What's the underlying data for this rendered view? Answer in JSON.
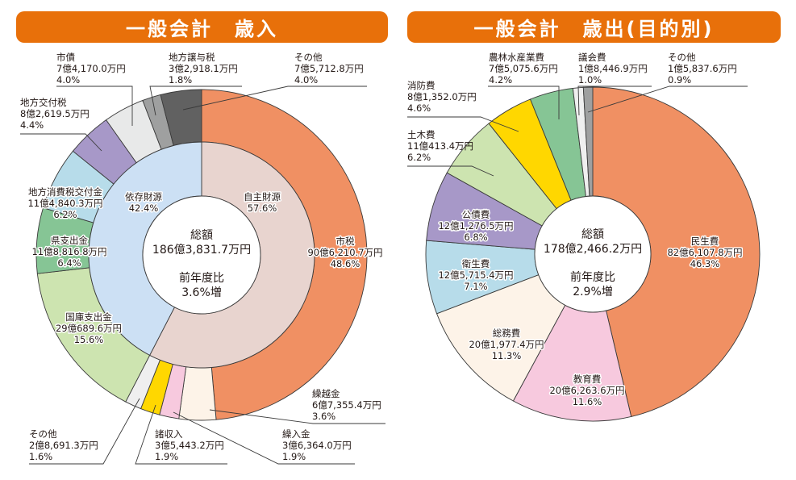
{
  "charts_page": {
    "left_title": "一般会計　歳入",
    "right_title": "一般会計　歳出(目的別)"
  },
  "chart_data": [
    {
      "type": "pie",
      "subtype": "donut-two-level",
      "title": "一般会計　歳入",
      "center": {
        "total_label": "総額",
        "total_value": "186億3,831.7万円",
        "yoy_label": "前年度比",
        "yoy_value": "3.6%増"
      },
      "inner_ring": [
        {
          "name": "自主財源",
          "percent": 57.6,
          "color": "#e8d4cf"
        },
        {
          "name": "依存財源",
          "percent": 42.4,
          "color": "#cce0f4"
        }
      ],
      "slices": [
        {
          "name": "市税",
          "amount": "90億6,210.7万円",
          "percent": 48.6,
          "color": "#f09063",
          "group": "自主財源"
        },
        {
          "name": "繰越金",
          "amount": "6億7,355.4万円",
          "percent": 3.6,
          "color": "#fdf3e8",
          "group": "自主財源"
        },
        {
          "name": "繰入金",
          "amount": "3億6,364.0万円",
          "percent": 1.9,
          "color": "#f7c9de",
          "group": "自主財源"
        },
        {
          "name": "諸収入",
          "amount": "3億5,443.2万円",
          "percent": 1.9,
          "color": "#ffd700",
          "group": "自主財源"
        },
        {
          "name": "その他",
          "amount": "2億8,691.3万円",
          "percent": 1.6,
          "color": "#efefef",
          "group": "自主財源"
        },
        {
          "name": "国庫支出金",
          "amount": "29億689.6万円",
          "percent": 15.6,
          "color": "#cde4b0",
          "group": "依存財源"
        },
        {
          "name": "県支出金",
          "amount": "11億8,816.8万円",
          "percent": 6.4,
          "color": "#86c595",
          "group": "依存財源"
        },
        {
          "name": "地方消費税交付金",
          "amount": "11億4,840.3万円",
          "percent": 6.2,
          "color": "#b7dcea",
          "group": "依存財源"
        },
        {
          "name": "地方交付税",
          "amount": "8億2,619.5万円",
          "percent": 4.4,
          "color": "#a798c8",
          "group": "依存財源"
        },
        {
          "name": "市債",
          "amount": "7億4,170.0万円",
          "percent": 4.0,
          "color": "#e8e9e9",
          "group": "依存財源"
        },
        {
          "name": "地方譲与税",
          "amount": "3億2,918.1万円",
          "percent": 1.8,
          "color": "#9fa0a0",
          "group": "依存財源"
        },
        {
          "name": "その他",
          "amount": "7億5,712.8万円",
          "percent": 4.0,
          "color": "#616161",
          "group": "依存財源"
        }
      ]
    },
    {
      "type": "pie",
      "subtype": "donut",
      "title": "一般会計　歳出(目的別)",
      "center": {
        "total_label": "総額",
        "total_value": "178億2,466.2万円",
        "yoy_label": "前年度比",
        "yoy_value": "2.9%増"
      },
      "slices": [
        {
          "name": "民生費",
          "amount": "82億6,107.8万円",
          "percent": 46.3,
          "color": "#f09063"
        },
        {
          "name": "教育費",
          "amount": "20億6,263.6万円",
          "percent": 11.6,
          "color": "#f7c9de"
        },
        {
          "name": "総務費",
          "amount": "20億1,977.4万円",
          "percent": 11.3,
          "color": "#fdf3e8"
        },
        {
          "name": "衛生費",
          "amount": "12億5,715.4万円",
          "percent": 7.1,
          "color": "#b7dcea"
        },
        {
          "name": "公債費",
          "amount": "12億1,276.5万円",
          "percent": 6.8,
          "color": "#a798c8"
        },
        {
          "name": "土木費",
          "amount": "11億413.4万円",
          "percent": 6.2,
          "color": "#cde4b0"
        },
        {
          "name": "消防費",
          "amount": "8億1,352.0万円",
          "percent": 4.6,
          "color": "#ffd700"
        },
        {
          "name": "農林水産業費",
          "amount": "7億5,075.6万円",
          "percent": 4.2,
          "color": "#86c595"
        },
        {
          "name": "議会費",
          "amount": "1億8,446.9万円",
          "percent": 1.0,
          "color": "#efefef"
        },
        {
          "name": "その他",
          "amount": "1億5,837.6万円",
          "percent": 0.9,
          "color": "#9fa0a0"
        }
      ]
    }
  ]
}
